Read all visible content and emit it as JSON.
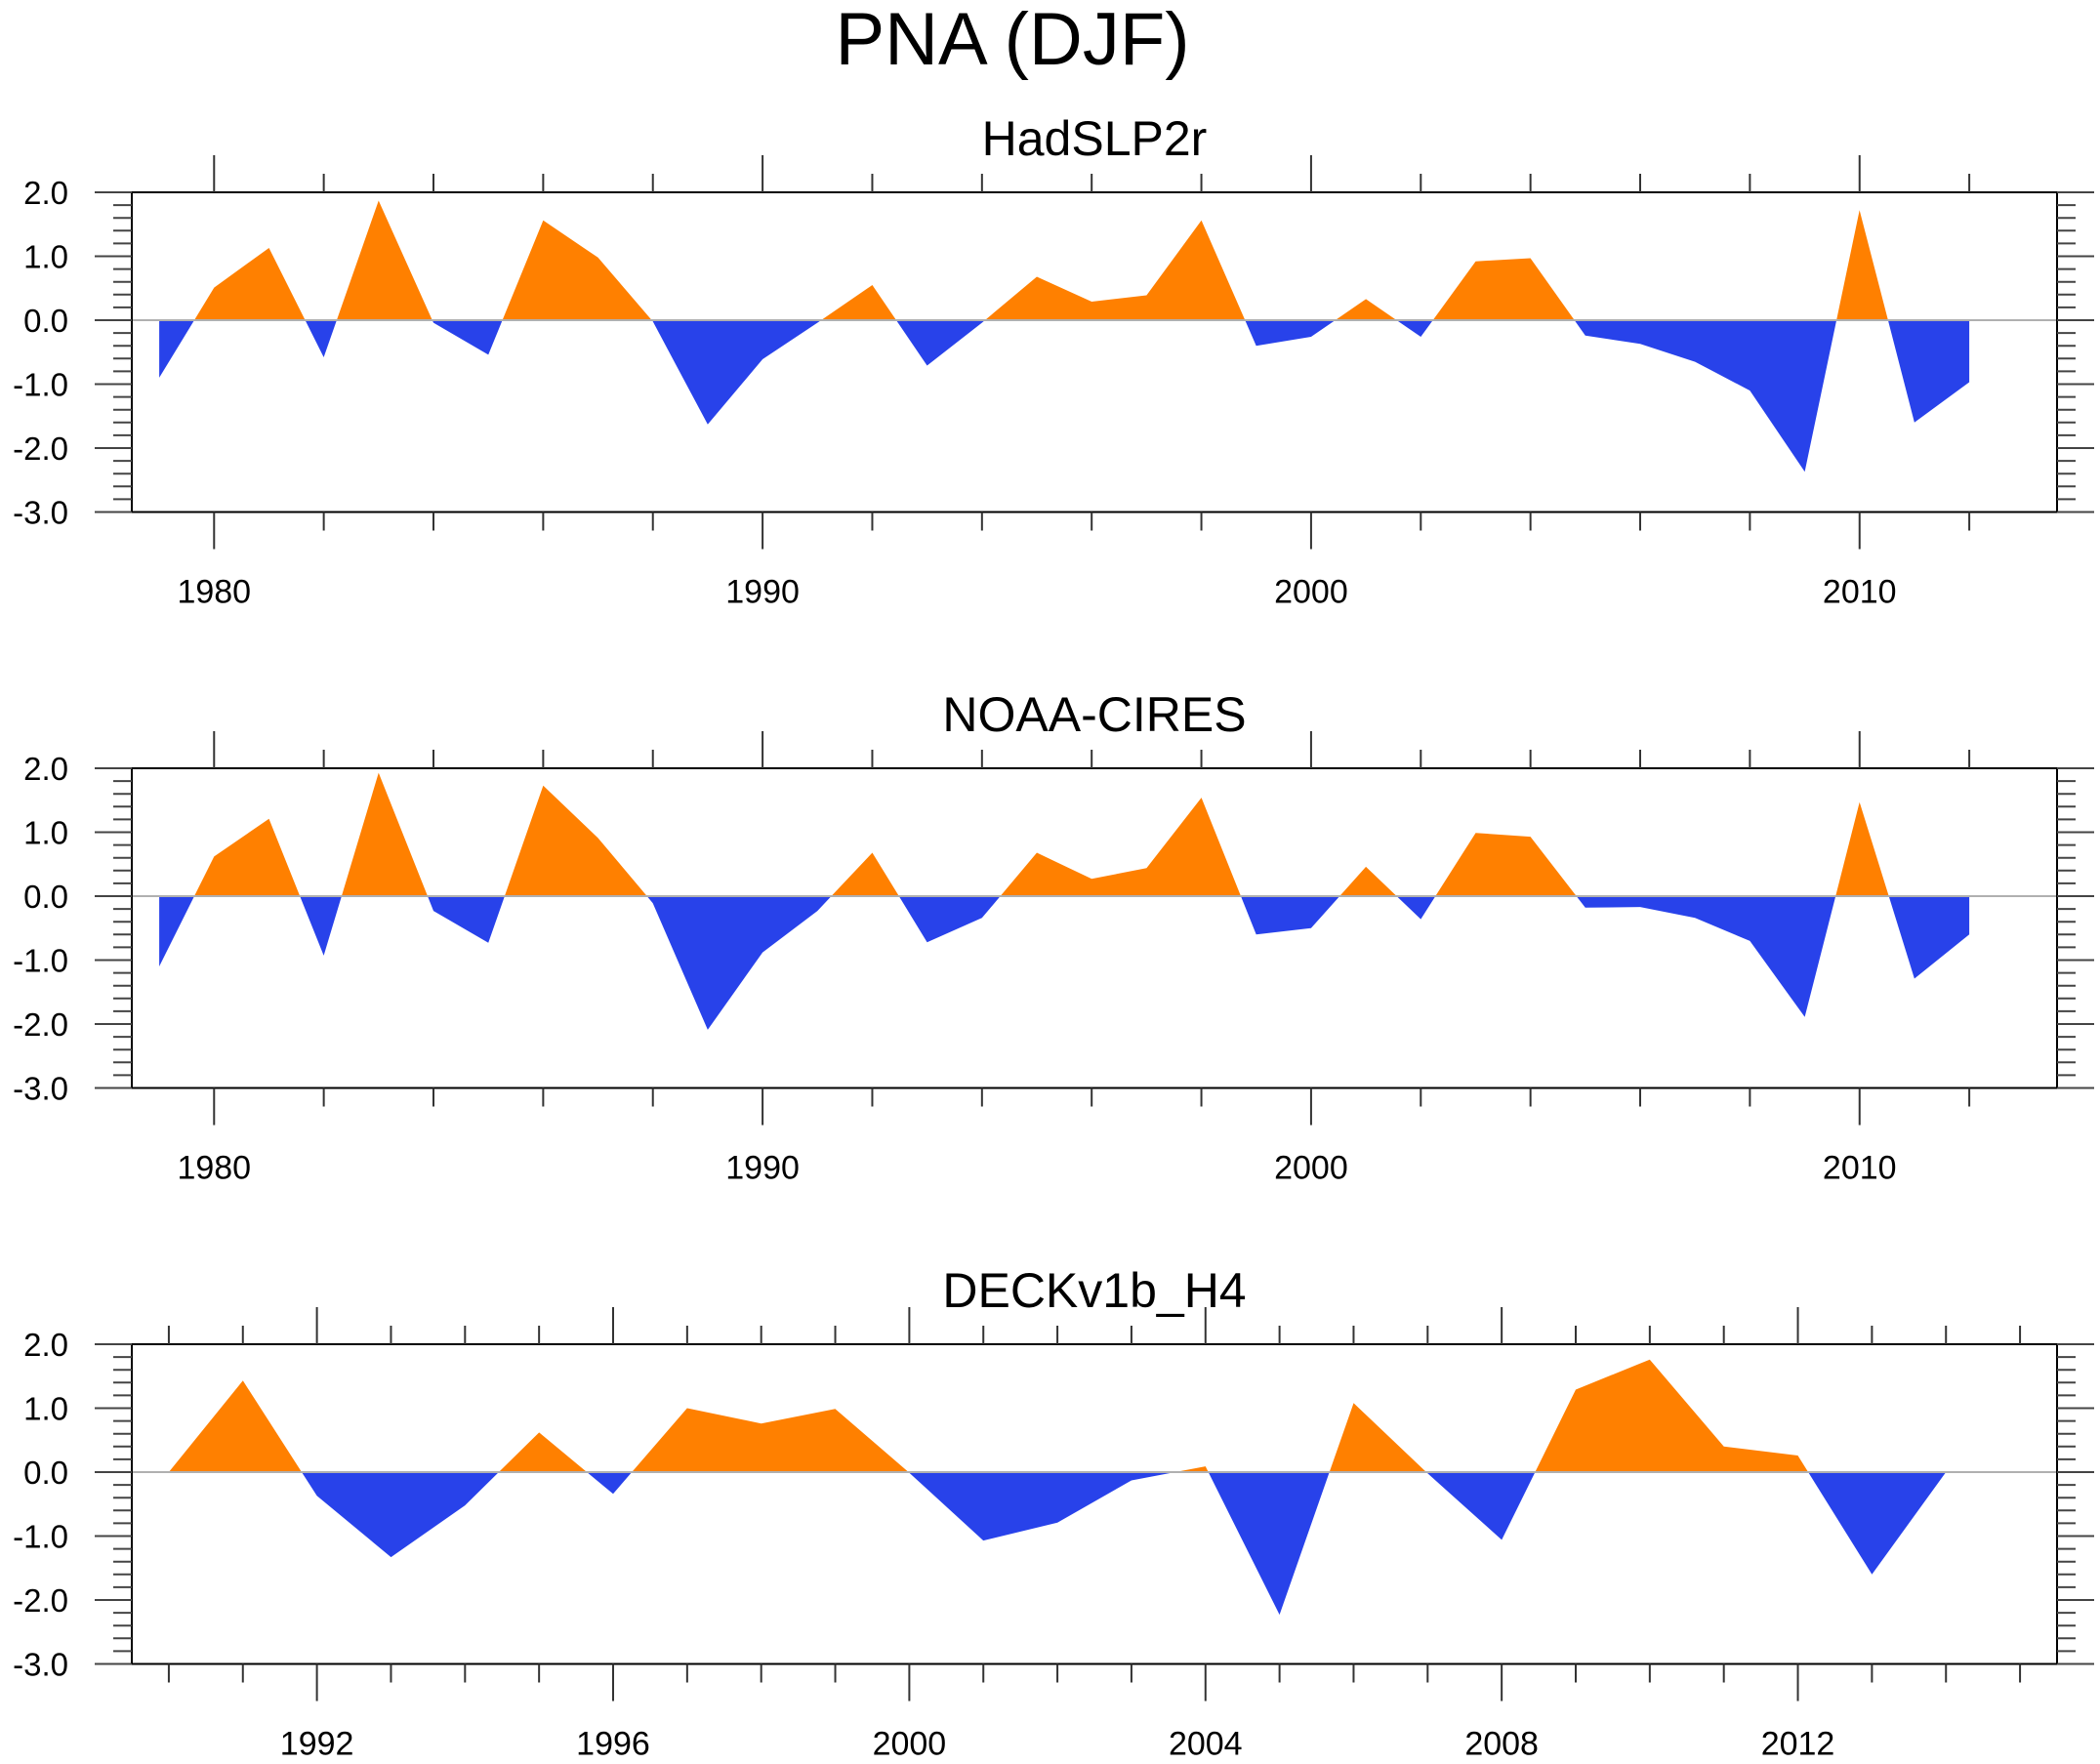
{
  "figure": {
    "title": "PNA (DJF)"
  },
  "colors": {
    "positive": "#ff8000",
    "negative": "#2842ea",
    "frame": "#000000",
    "zero_line": "#b0b0b0"
  },
  "chart_data": [
    {
      "type": "area",
      "title": "HadSLP2r",
      "xlabel": "",
      "ylabel": "",
      "xlim": [
        1978.5,
        2013.6
      ],
      "ylim": [
        -3.0,
        2.0
      ],
      "x_major_ticks": [
        1980,
        1990,
        2000,
        2010
      ],
      "x_minor_step": 2,
      "x_tick_labels": [
        "1980",
        "1990",
        "2000",
        "2010"
      ],
      "y_major_ticks": [
        2.0,
        1.0,
        0.0,
        -1.0,
        -2.0,
        -3.0
      ],
      "y_tick_labels": [
        "2.0",
        "1.0",
        "0.0",
        "-1.0",
        "-2.0",
        "-3.0"
      ],
      "y_minor_step": 0.2,
      "grid": false,
      "reference_line": 0.0,
      "x": [
        1979,
        1980,
        1981,
        1982,
        1983,
        1984,
        1985,
        1986,
        1987,
        1988,
        1989,
        1990,
        1991,
        1992,
        1993,
        1994,
        1995,
        1996,
        1997,
        1998,
        1999,
        2000,
        2001,
        2002,
        2003,
        2004,
        2005,
        2006,
        2007,
        2008,
        2009,
        2010,
        2011,
        2012
      ],
      "values": [
        -0.9,
        0.51,
        1.13,
        -0.58,
        1.87,
        -0.04,
        -0.54,
        1.56,
        0.98,
        -0.02,
        -1.63,
        -0.61,
        -0.04,
        0.55,
        -0.71,
        -0.04,
        0.68,
        0.29,
        0.39,
        1.56,
        -0.4,
        -0.26,
        0.33,
        -0.26,
        0.92,
        0.97,
        -0.24,
        -0.37,
        -0.65,
        -1.1,
        -2.37,
        1.72,
        -1.6,
        -0.97
      ]
    },
    {
      "type": "area",
      "title": "NOAA-CIRES",
      "xlabel": "",
      "ylabel": "",
      "xlim": [
        1978.5,
        2013.6
      ],
      "ylim": [
        -3.0,
        2.0
      ],
      "x_major_ticks": [
        1980,
        1990,
        2000,
        2010
      ],
      "x_minor_step": 2,
      "x_tick_labels": [
        "1980",
        "1990",
        "2000",
        "2010"
      ],
      "y_major_ticks": [
        2.0,
        1.0,
        0.0,
        -1.0,
        -2.0,
        -3.0
      ],
      "y_tick_labels": [
        "2.0",
        "1.0",
        "0.0",
        "-1.0",
        "-2.0",
        "-3.0"
      ],
      "y_minor_step": 0.2,
      "grid": false,
      "reference_line": 0.0,
      "x": [
        1979,
        1980,
        1981,
        1982,
        1983,
        1984,
        1985,
        1986,
        1987,
        1988,
        1989,
        1990,
        1991,
        1992,
        1993,
        1994,
        1995,
        1996,
        1997,
        1998,
        1999,
        2000,
        2001,
        2002,
        2003,
        2004,
        2005,
        2006,
        2007,
        2008,
        2009,
        2010,
        2011,
        2012
      ],
      "values": [
        -1.1,
        0.62,
        1.21,
        -0.93,
        1.93,
        -0.23,
        -0.73,
        1.73,
        0.91,
        -0.11,
        -2.09,
        -0.88,
        -0.23,
        0.68,
        -0.72,
        -0.34,
        0.68,
        0.27,
        0.44,
        1.54,
        -0.6,
        -0.5,
        0.46,
        -0.36,
        0.99,
        0.93,
        -0.18,
        -0.17,
        -0.34,
        -0.7,
        -1.89,
        1.47,
        -1.29,
        -0.6
      ]
    },
    {
      "type": "area",
      "title": "DECKv1b_H4",
      "xlabel": "",
      "ylabel": "",
      "xlim": [
        1989.5,
        2015.5
      ],
      "ylim": [
        -3.0,
        2.0
      ],
      "x_major_ticks": [
        1992,
        1996,
        2000,
        2004,
        2008,
        2012
      ],
      "x_minor_step": 1,
      "x_tick_labels": [
        "1992",
        "1996",
        "2000",
        "2004",
        "2008",
        "2012"
      ],
      "y_major_ticks": [
        2.0,
        1.0,
        0.0,
        -1.0,
        -2.0,
        -3.0
      ],
      "y_tick_labels": [
        "2.0",
        "1.0",
        "0.0",
        "-1.0",
        "-2.0",
        "-3.0"
      ],
      "y_minor_step": 0.2,
      "grid": false,
      "reference_line": 0.0,
      "x": [
        1990,
        1991,
        1992,
        1993,
        1994,
        1995,
        1996,
        1997,
        1998,
        1999,
        2000,
        2001,
        2002,
        2003,
        2004,
        2005,
        2006,
        2007,
        2008,
        2009,
        2010,
        2011,
        2012,
        2013,
        2014
      ],
      "values": [
        0.0,
        1.43,
        -0.37,
        -1.33,
        -0.52,
        0.62,
        -0.34,
        1.0,
        0.76,
        0.99,
        -0.01,
        -1.07,
        -0.79,
        -0.13,
        0.09,
        -2.23,
        1.08,
        -0.02,
        -1.06,
        1.29,
        1.76,
        0.4,
        0.26,
        -1.6,
        0.0
      ]
    }
  ]
}
